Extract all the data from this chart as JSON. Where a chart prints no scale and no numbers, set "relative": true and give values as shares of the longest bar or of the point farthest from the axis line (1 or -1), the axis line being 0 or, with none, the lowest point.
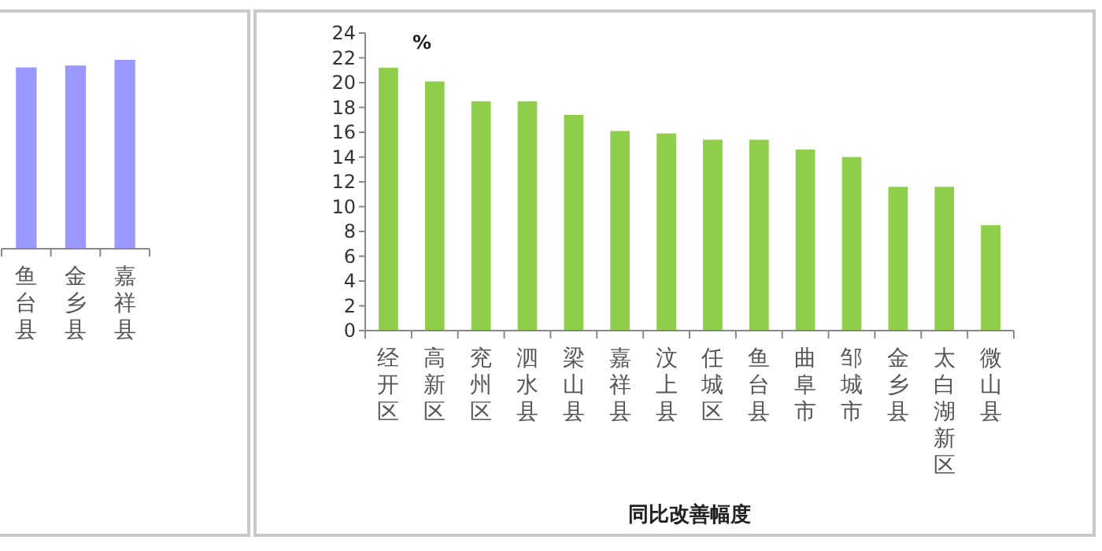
{
  "chart_data": [
    {
      "type": "bar",
      "relative": true,
      "categories": [
        "鱼台县",
        "金乡县",
        "嘉祥县"
      ],
      "series": [
        {
          "color": "#9999ff",
          "values": [
            0.96,
            0.97,
            1
          ]
        }
      ]
    },
    {
      "type": "bar",
      "ylabel": "%",
      "xlabel": "同比改善幅度",
      "ylim": [
        0,
        24
      ],
      "yticks": [
        0,
        2,
        4,
        6,
        8,
        10,
        12,
        14,
        16,
        18,
        20,
        22,
        24
      ],
      "categories": [
        "经开区",
        "高新区",
        "兖州区",
        "泗水县",
        "梁山县",
        "嘉祥县",
        "汶上县",
        "任城区",
        "鱼台县",
        "曲阜市",
        "邹城市",
        "金乡县",
        "太白湖新区",
        "微山县"
      ],
      "series": [
        {
          "color": "#8fce4a",
          "values": [
            21.2,
            20.1,
            18.5,
            18.5,
            17.4,
            16.1,
            15.9,
            15.4,
            15.4,
            14.6,
            14.0,
            11.6,
            11.6,
            8.5
          ]
        }
      ]
    }
  ]
}
